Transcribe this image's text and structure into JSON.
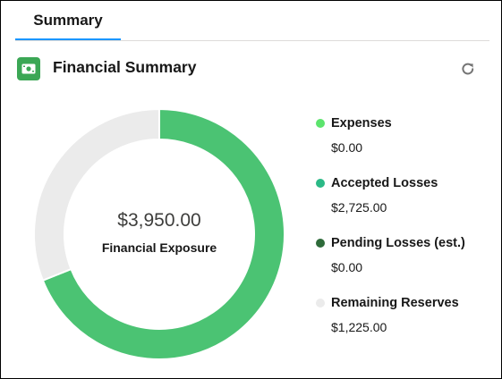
{
  "tabs": [
    {
      "label": "Summary",
      "active": true
    }
  ],
  "card": {
    "title": "Financial Summary",
    "icon": "money-icon",
    "refresh_icon": "refresh-icon"
  },
  "donut": {
    "center_value": "$3,950.00",
    "center_label": "Financial Exposure"
  },
  "colors": {
    "expenses": "#5ce46d",
    "accepted": "#2bb986",
    "pending": "#2e6b3a",
    "remaining": "#ebebeb",
    "ring_accepted_fill": "#4bc373",
    "accent": "#1b96ff"
  },
  "chart_data": {
    "type": "pie",
    "series": [
      {
        "name": "Expenses",
        "value": 0.0,
        "label": "$0.00",
        "color": "#5ce46d"
      },
      {
        "name": "Accepted Losses",
        "value": 2725.0,
        "label": "$2,725.00",
        "color": "#4bc373"
      },
      {
        "name": "Pending Losses (est.)",
        "value": 0.0,
        "label": "$0.00",
        "color": "#2e6b3a"
      },
      {
        "name": "Remaining Reserves",
        "value": 1225.0,
        "label": "$1,225.00",
        "color": "#ebebeb"
      }
    ],
    "total": 3950.0,
    "legend_position": "right"
  },
  "legend": [
    {
      "name": "Expenses",
      "value": "$0.00",
      "dot_color": "#5ce46d"
    },
    {
      "name": "Accepted Losses",
      "value": "$2,725.00",
      "dot_color": "#2bb986"
    },
    {
      "name": "Pending Losses (est.)",
      "value": "$0.00",
      "dot_color": "#2e6b3a"
    },
    {
      "name": "Remaining Reserves",
      "value": "$1,225.00",
      "dot_color": "#ebebeb"
    }
  ]
}
